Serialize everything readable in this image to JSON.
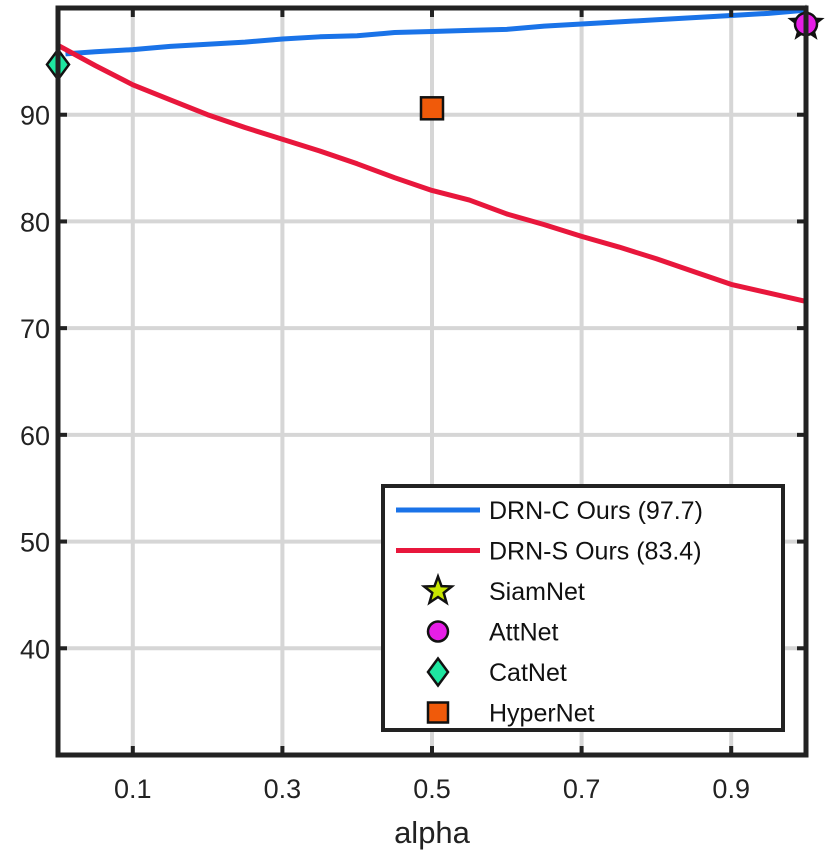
{
  "chart_data": {
    "type": "line",
    "xlabel": "alpha",
    "ylabel": "",
    "xlim": [
      0,
      1
    ],
    "ylim": [
      30,
      100
    ],
    "xticks": [
      0.1,
      0.3,
      0.5,
      0.7,
      0.9
    ],
    "xtick_labels": [
      "0.1",
      "0.3",
      "0.5",
      "0.7",
      "0.9"
    ],
    "yticks": [
      40,
      50,
      60,
      70,
      80,
      90
    ],
    "ytick_labels": [
      "40",
      "50",
      "60",
      "70",
      "80",
      "90"
    ],
    "grid": true,
    "legend_position": "bottom-right",
    "series": [
      {
        "name": "DRN-C Ours (97.7)",
        "kind": "line",
        "color": "#1a73e8",
        "x": [
          0.01,
          0.05,
          0.1,
          0.15,
          0.2,
          0.25,
          0.3,
          0.35,
          0.4,
          0.45,
          0.5,
          0.55,
          0.6,
          0.65,
          0.7,
          0.75,
          0.8,
          0.85,
          0.9,
          0.95,
          1.0
        ],
        "y": [
          95.7,
          95.9,
          96.1,
          96.4,
          96.6,
          96.8,
          97.1,
          97.3,
          97.4,
          97.7,
          97.8,
          97.9,
          98.0,
          98.3,
          98.5,
          98.7,
          98.9,
          99.1,
          99.3,
          99.5,
          99.8
        ]
      },
      {
        "name": "DRN-S Ours (83.4)",
        "kind": "line",
        "color": "#e8173c",
        "x": [
          0.0,
          0.05,
          0.1,
          0.15,
          0.2,
          0.25,
          0.3,
          0.35,
          0.4,
          0.45,
          0.5,
          0.55,
          0.6,
          0.65,
          0.7,
          0.75,
          0.8,
          0.85,
          0.9,
          0.95,
          1.0
        ],
        "y": [
          96.5,
          94.6,
          92.8,
          91.4,
          90.0,
          88.8,
          87.7,
          86.6,
          85.4,
          84.1,
          82.9,
          82.0,
          80.7,
          79.7,
          78.6,
          77.6,
          76.5,
          75.3,
          74.1,
          73.3,
          72.5
        ]
      },
      {
        "name": "SiamNet",
        "kind": "marker",
        "marker": "star",
        "color": "#c8e600",
        "x": [
          1.0
        ],
        "y": [
          98.5
        ]
      },
      {
        "name": "AttNet",
        "kind": "marker",
        "marker": "circle",
        "color": "#e61ee6",
        "x": [
          1.0
        ],
        "y": [
          98.5
        ]
      },
      {
        "name": "CatNet",
        "kind": "marker",
        "marker": "diamond",
        "color": "#1ee6a0",
        "x": [
          0.0
        ],
        "y": [
          94.7
        ]
      },
      {
        "name": "HyperNet",
        "kind": "marker",
        "marker": "square",
        "color": "#f05a0a",
        "x": [
          0.5
        ],
        "y": [
          90.6
        ]
      }
    ]
  }
}
